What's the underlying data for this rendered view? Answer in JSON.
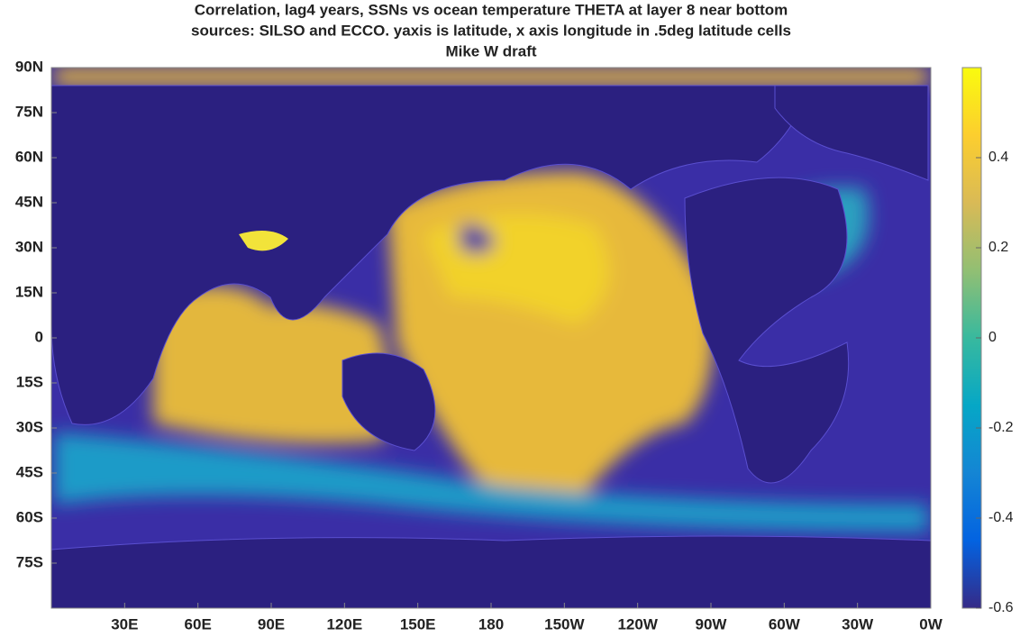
{
  "chart_data": {
    "type": "map",
    "title": [
      "Correlation, lag4 years, SSNs vs ocean temperature THETA at layer 8 near bottom",
      "sources: SILSO and ECCO. yaxis is latitude, x axis longitude in .5deg latitude cells",
      "Mike W draft"
    ],
    "xlim": [
      0,
      360
    ],
    "xticks": [
      {
        "value": 30,
        "label": "30E"
      },
      {
        "value": 60,
        "label": "60E"
      },
      {
        "value": 90,
        "label": "90E"
      },
      {
        "value": 120,
        "label": "120E"
      },
      {
        "value": 150,
        "label": "150E"
      },
      180,
      {
        "value": 210,
        "label": "150W"
      },
      {
        "value": 240,
        "label": "120W"
      },
      {
        "value": 270,
        "label": "90W"
      },
      {
        "value": 300,
        "label": "60W"
      },
      {
        "value": 330,
        "label": "30W"
      },
      {
        "value": 360,
        "label": "0W"
      }
    ],
    "ylim": [
      -90,
      90
    ],
    "yticks": [
      {
        "value": 90,
        "label": "90N"
      },
      {
        "value": 75,
        "label": "75N"
      },
      {
        "value": 60,
        "label": "60N"
      },
      {
        "value": 45,
        "label": "45N"
      },
      {
        "value": 30,
        "label": "30N"
      },
      {
        "value": 15,
        "label": "15N"
      },
      0,
      {
        "value": -15,
        "label": "15S"
      },
      {
        "value": -30,
        "label": "30S"
      },
      {
        "value": -45,
        "label": "45S"
      },
      {
        "value": -60,
        "label": "60S"
      },
      {
        "value": -75,
        "label": "75S"
      }
    ],
    "clim": [
      -0.6,
      0.6
    ],
    "cticks": [
      0.4,
      0.2,
      0,
      -0.2,
      -0.4,
      -0.6
    ]
  }
}
